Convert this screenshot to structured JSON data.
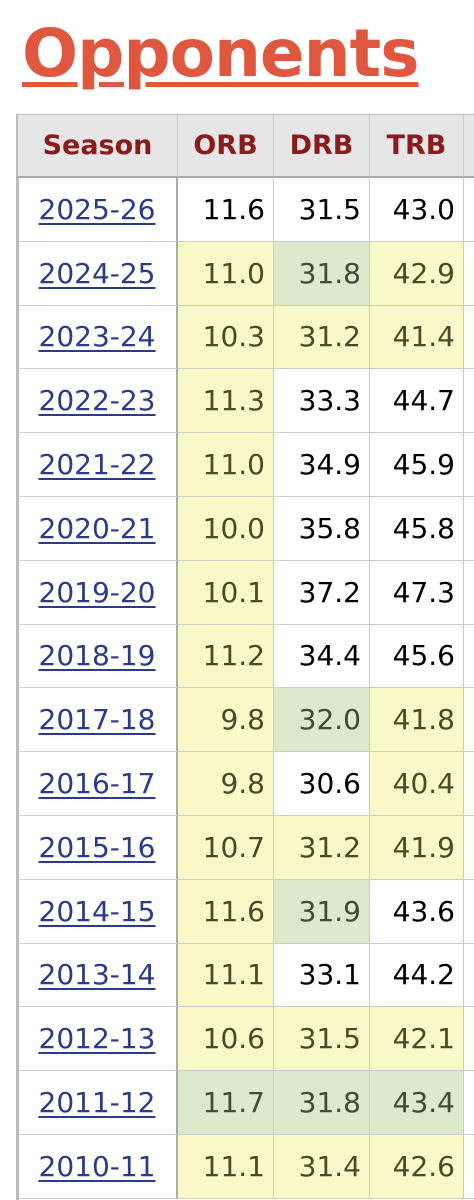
{
  "header": {
    "title": "Opponents"
  },
  "table": {
    "columns": [
      "Season",
      "ORB",
      "DRB",
      "TRB"
    ],
    "rows": [
      [
        "2025-26",
        "11.6",
        "31.5",
        "43.0"
      ],
      [
        "2024-25",
        "11.0",
        "31.8",
        "42.9"
      ],
      [
        "2023-24",
        "10.3",
        "31.2",
        "41.4"
      ],
      [
        "2022-23",
        "11.3",
        "33.3",
        "44.7"
      ],
      [
        "2021-22",
        "11.0",
        "34.9",
        "45.9"
      ],
      [
        "2020-21",
        "10.0",
        "35.8",
        "45.8"
      ],
      [
        "2019-20",
        "10.1",
        "37.2",
        "47.3"
      ],
      [
        "2018-19",
        "11.2",
        "34.4",
        "45.6"
      ],
      [
        "2017-18",
        "9.8",
        "32.0",
        "41.8"
      ],
      [
        "2016-17",
        "9.8",
        "30.6",
        "40.4"
      ],
      [
        "2015-16",
        "10.7",
        "31.2",
        "41.9"
      ],
      [
        "2014-15",
        "11.6",
        "31.9",
        "43.6"
      ],
      [
        "2013-14",
        "11.1",
        "33.1",
        "44.2"
      ],
      [
        "2012-13",
        "10.6",
        "31.5",
        "42.1"
      ],
      [
        "2011-12",
        "11.7",
        "31.8",
        "43.4"
      ],
      [
        "2010-11",
        "11.1",
        "31.4",
        "42.6"
      ]
    ]
  }
}
